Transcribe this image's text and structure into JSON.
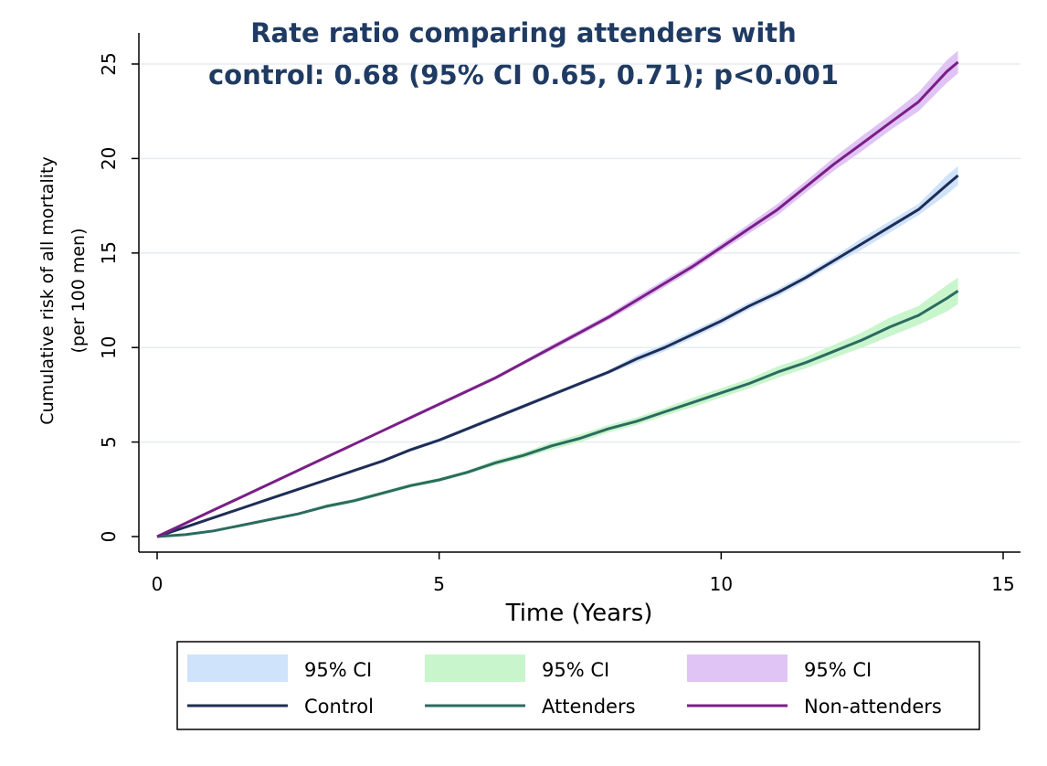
{
  "chart_data": {
    "type": "line",
    "title": "Rate ratio comparing attenders with",
    "subtitle": "control: 0.68 (95% CI 0.65, 0.71); p<0.001",
    "xlabel": "Time (Years)",
    "ylabel": "Cumulative risk of all mortality",
    "ylabel2": "(per 100 men)",
    "xlim": [
      0,
      15
    ],
    "ylim": [
      0,
      25
    ],
    "xticks": [
      "0",
      "5",
      "10",
      "15"
    ],
    "yticks": [
      "0",
      "5",
      "10",
      "15",
      "20",
      "25"
    ],
    "grid": true,
    "legend_position": "bottom",
    "series": [
      {
        "name": "Control",
        "ci_name": "95% CI",
        "color": "#1f2d56",
        "ci_color": "#cfe3fb",
        "x": [
          0,
          0.5,
          1,
          1.5,
          2,
          2.5,
          3,
          3.5,
          4,
          4.5,
          5,
          5.5,
          6,
          6.5,
          7,
          7.5,
          8,
          8.5,
          9,
          9.5,
          10,
          10.5,
          11,
          11.5,
          12,
          12.5,
          13,
          13.5,
          14,
          14.2
        ],
        "y": [
          0,
          0.5,
          1.0,
          1.5,
          2.0,
          2.5,
          3.0,
          3.5,
          4.0,
          4.6,
          5.1,
          5.7,
          6.3,
          6.9,
          7.5,
          8.1,
          8.7,
          9.4,
          10.0,
          10.7,
          11.4,
          12.2,
          12.9,
          13.7,
          14.6,
          15.5,
          16.4,
          17.3,
          18.6,
          19.1
        ],
        "ci_lower": [
          0,
          0.45,
          0.95,
          1.45,
          1.95,
          2.45,
          2.95,
          3.45,
          3.95,
          4.5,
          5.0,
          5.6,
          6.2,
          6.8,
          7.4,
          8.0,
          8.6,
          9.2,
          9.8,
          10.5,
          11.2,
          12.0,
          12.7,
          13.5,
          14.4,
          15.2,
          16.1,
          17.0,
          18.1,
          18.6
        ],
        "ci_upper": [
          0,
          0.55,
          1.05,
          1.55,
          2.05,
          2.55,
          3.05,
          3.55,
          4.05,
          4.7,
          5.2,
          5.8,
          6.4,
          7.0,
          7.6,
          8.2,
          8.8,
          9.6,
          10.2,
          10.9,
          11.6,
          12.4,
          13.1,
          13.9,
          14.8,
          15.8,
          16.7,
          17.6,
          19.1,
          19.6
        ]
      },
      {
        "name": "Attenders",
        "ci_name": "95% CI",
        "color": "#2b6b60",
        "ci_color": "#c9f5cc",
        "x": [
          0,
          0.5,
          1,
          1.5,
          2,
          2.5,
          3,
          3.5,
          4,
          4.5,
          5,
          5.5,
          6,
          6.5,
          7,
          7.5,
          8,
          8.5,
          9,
          9.5,
          10,
          10.5,
          11,
          11.5,
          12,
          12.5,
          13,
          13.5,
          14,
          14.2
        ],
        "y": [
          0,
          0.1,
          0.3,
          0.6,
          0.9,
          1.2,
          1.6,
          1.9,
          2.3,
          2.7,
          3.0,
          3.4,
          3.9,
          4.3,
          4.8,
          5.2,
          5.7,
          6.1,
          6.6,
          7.1,
          7.6,
          8.1,
          8.7,
          9.2,
          9.8,
          10.4,
          11.1,
          11.7,
          12.6,
          13.0
        ],
        "ci_lower": [
          0,
          0.08,
          0.26,
          0.55,
          0.85,
          1.15,
          1.5,
          1.8,
          2.2,
          2.6,
          2.9,
          3.3,
          3.75,
          4.15,
          4.6,
          5.0,
          5.5,
          5.9,
          6.4,
          6.85,
          7.35,
          7.85,
          8.4,
          8.9,
          9.45,
          10.0,
          10.6,
          11.2,
          11.9,
          12.3
        ],
        "ci_upper": [
          0,
          0.12,
          0.34,
          0.65,
          0.95,
          1.25,
          1.7,
          2.0,
          2.4,
          2.8,
          3.1,
          3.5,
          4.05,
          4.45,
          5.0,
          5.4,
          5.9,
          6.3,
          6.8,
          7.35,
          7.85,
          8.35,
          9.0,
          9.5,
          10.15,
          10.8,
          11.6,
          12.2,
          13.3,
          13.7
        ]
      },
      {
        "name": "Non-attenders",
        "ci_name": "95% CI",
        "color": "#7a1f86",
        "ci_color": "#e0c4f5",
        "x": [
          0,
          0.5,
          1,
          1.5,
          2,
          2.5,
          3,
          3.5,
          4,
          4.5,
          5,
          5.5,
          6,
          6.5,
          7,
          7.5,
          8,
          8.5,
          9,
          9.5,
          10,
          10.5,
          11,
          11.5,
          12,
          12.5,
          13,
          13.5,
          14,
          14.2
        ],
        "y": [
          0,
          0.7,
          1.4,
          2.1,
          2.8,
          3.5,
          4.2,
          4.9,
          5.6,
          6.3,
          7.0,
          7.7,
          8.4,
          9.2,
          10.0,
          10.8,
          11.6,
          12.5,
          13.4,
          14.3,
          15.3,
          16.3,
          17.3,
          18.5,
          19.7,
          20.8,
          21.9,
          23.0,
          24.6,
          25.1
        ],
        "ci_lower": [
          0,
          0.65,
          1.35,
          2.05,
          2.75,
          3.45,
          4.15,
          4.85,
          5.55,
          6.2,
          6.9,
          7.6,
          8.3,
          9.1,
          9.85,
          10.65,
          11.45,
          12.3,
          13.2,
          14.1,
          15.1,
          16.05,
          17.0,
          18.2,
          19.35,
          20.4,
          21.5,
          22.5,
          24.0,
          24.5
        ],
        "ci_upper": [
          0,
          0.75,
          1.45,
          2.15,
          2.85,
          3.55,
          4.25,
          4.95,
          5.65,
          6.4,
          7.1,
          7.8,
          8.5,
          9.3,
          10.15,
          10.95,
          11.75,
          12.7,
          13.6,
          14.5,
          15.5,
          16.55,
          17.6,
          18.8,
          20.05,
          21.2,
          22.3,
          23.5,
          25.2,
          25.7
        ]
      }
    ]
  }
}
